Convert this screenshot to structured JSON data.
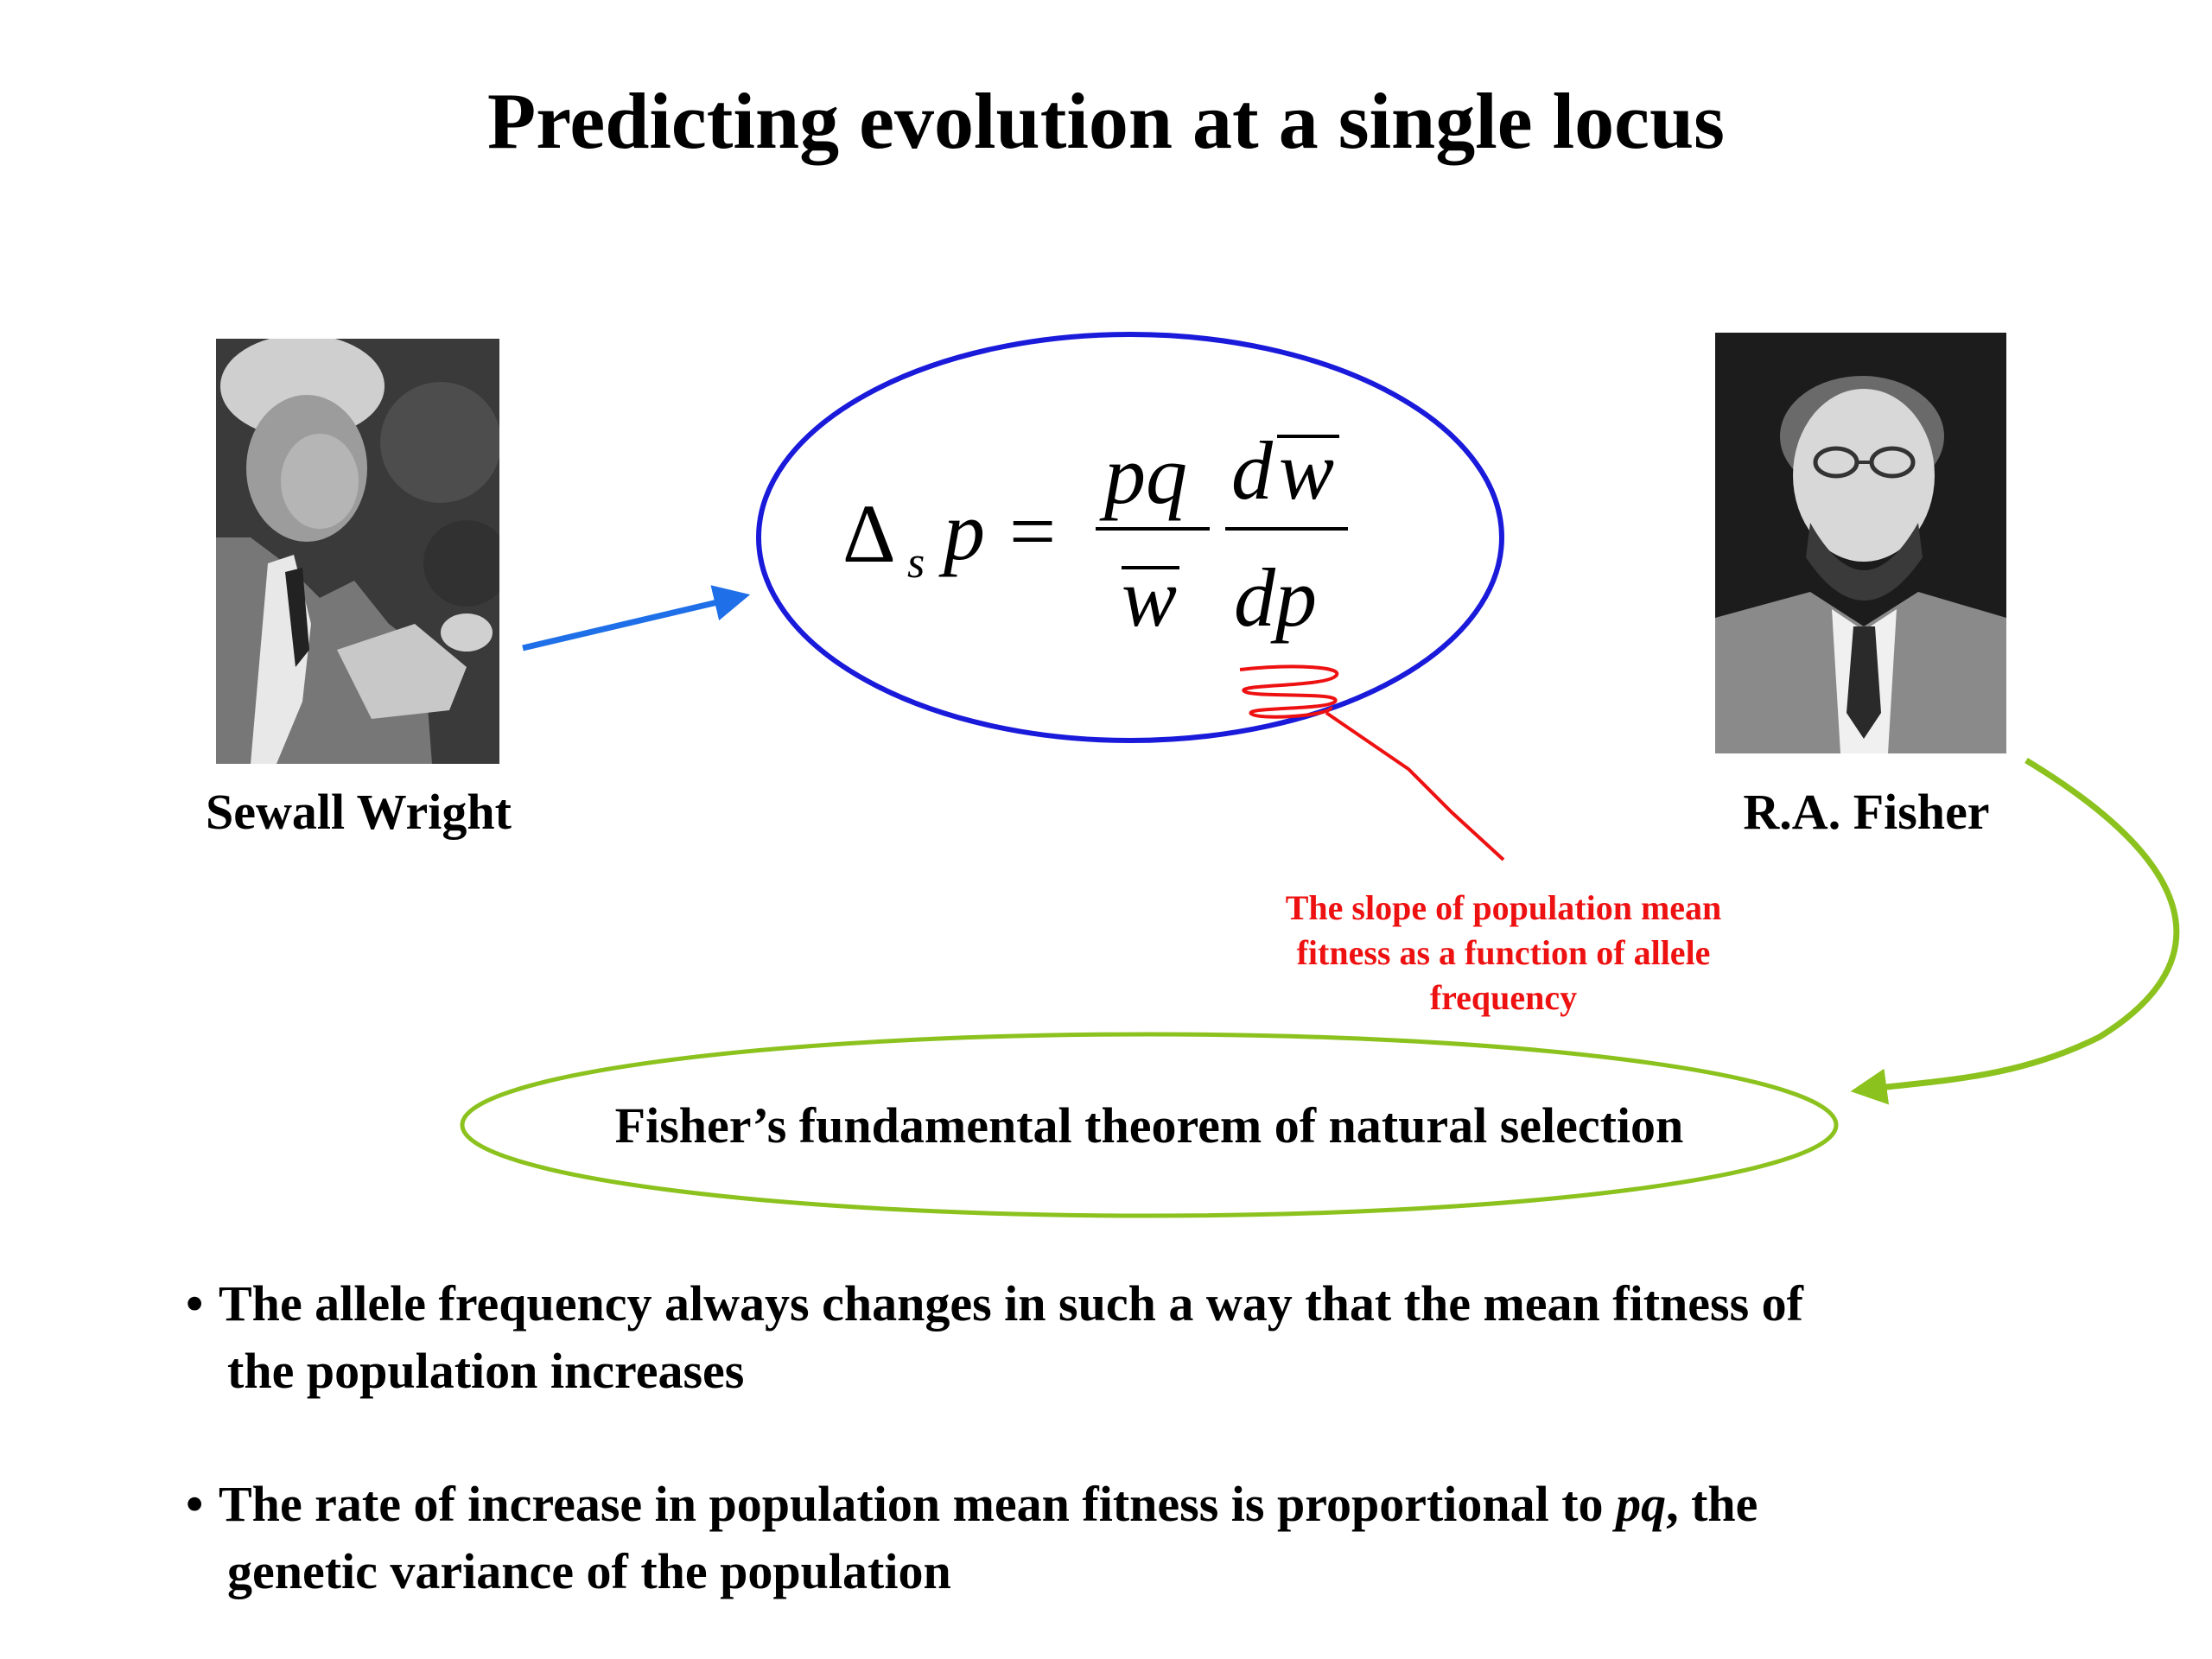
{
  "title": "Predicting evolution at a single locus",
  "people": {
    "left": {
      "name": "Sewall Wright"
    },
    "right": {
      "name": "R.A. Fisher"
    }
  },
  "equation": {
    "delta": "Δ",
    "subscript": "s",
    "lhs_var": "p",
    "equals": "=",
    "frac1_num": "pq",
    "frac1_den": "w",
    "frac2_num_d": "d",
    "frac2_num_w": "w",
    "frac2_den": "dp"
  },
  "annotation": {
    "line1": "The slope of population mean",
    "line2": "fitness as a function of allele",
    "line3": "frequency"
  },
  "theorem": "Fisher’s fundamental theorem of natural selection",
  "bullets": [
    {
      "marker": "•",
      "line1": "The allele frequency always changes in such a way that the mean fitness of",
      "line2": "the population increases"
    },
    {
      "marker": "•",
      "line1_a": "The rate of increase in population mean fitness is proportional to ",
      "line1_em": "pq",
      "line1_b": ", the",
      "line2": "genetic variance of the population"
    }
  ],
  "colors": {
    "equation_ellipse": "#1a1adb",
    "wright_arrow": "#1f6fe8",
    "annotation": "#ee1111",
    "theorem_ellipse": "#8cc21e"
  },
  "icons": [
    "wright-photo",
    "fisher-photo",
    "arrow-icon"
  ]
}
